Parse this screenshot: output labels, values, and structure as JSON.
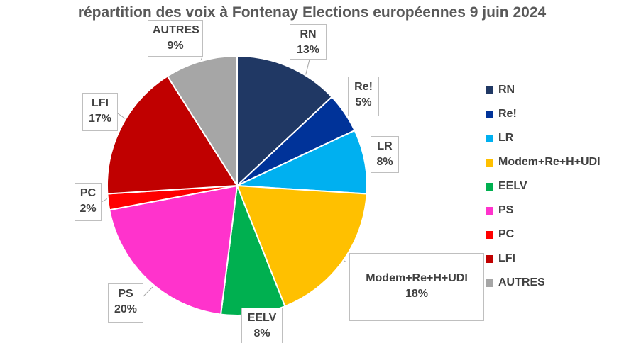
{
  "chart_data": {
    "type": "pie",
    "title": "répartition des voix à Fontenay Elections européennes 9 juin 2024",
    "slices": [
      {
        "label": "RN",
        "value": 13,
        "value_label": "13%",
        "color": "#203864"
      },
      {
        "label": "Re!",
        "value": 5,
        "value_label": "5%",
        "color": "#003399"
      },
      {
        "label": "LR",
        "value": 8,
        "value_label": "8%",
        "color": "#00B0F0"
      },
      {
        "label": "Modem+Re+H+UDI",
        "value": 18,
        "value_label": "18%",
        "color": "#FFC000"
      },
      {
        "label": "EELV",
        "value": 8,
        "value_label": "8%",
        "color": "#00B050"
      },
      {
        "label": "PS",
        "value": 20,
        "value_label": "20%",
        "color": "#FF33CC"
      },
      {
        "label": "PC",
        "value": 2,
        "value_label": "2%",
        "color": "#FF0000"
      },
      {
        "label": "LFI",
        "value": 17,
        "value_label": "17%",
        "color": "#C00000"
      },
      {
        "label": "AUTRES",
        "value": 9,
        "value_label": "9%",
        "color": "#A6A6A6"
      }
    ],
    "legend_position": "right"
  }
}
